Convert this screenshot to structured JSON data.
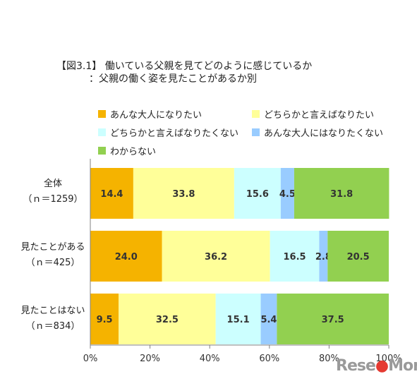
{
  "chart_data": {
    "type": "bar",
    "orientation": "horizontal",
    "stacked": true,
    "title": "【図3.1】 働いている父親を見てどのように感じているか",
    "subtitle": "：父親の働く姿を見たことがあるか別",
    "categories": [
      {
        "name": "全体",
        "n": "（ｎ＝1259）"
      },
      {
        "name": "見たことがある",
        "n": "（ｎ＝425）"
      },
      {
        "name": "見たことはない",
        "n": "（ｎ＝834）"
      }
    ],
    "series": [
      {
        "name": "あんな大人になりたい",
        "color": "#f5b300",
        "values": [
          14.4,
          24.0,
          9.5
        ],
        "labels": [
          "14.4",
          "24.0",
          "9.5"
        ]
      },
      {
        "name": "どちらかと言えばなりたい",
        "color": "#ffff99",
        "values": [
          33.8,
          36.2,
          32.5
        ],
        "labels": [
          "33.8",
          "36.2",
          "32.5"
        ]
      },
      {
        "name": "どちらかと言えばなりたくない",
        "color": "#ccffff",
        "values": [
          15.6,
          16.5,
          15.1
        ],
        "labels": [
          "15.6",
          "16.5",
          "15.1"
        ]
      },
      {
        "name": "あんな大人にはなりたくない",
        "color": "#99ccff",
        "values": [
          4.5,
          2.8,
          5.4
        ],
        "labels": [
          "4.5",
          "2.8",
          "5.4"
        ]
      },
      {
        "name": "わからない",
        "color": "#92d050",
        "values": [
          31.8,
          20.5,
          37.5
        ],
        "labels": [
          "31.8",
          "20.5",
          "37.5"
        ]
      }
    ],
    "xlim": [
      0,
      100
    ],
    "xticks": [
      "0%",
      "20%",
      "40%",
      "60%",
      "80%",
      "100%"
    ],
    "grid": false,
    "legend_position": "top"
  },
  "watermark": {
    "pre": "Rese",
    "mid": "●",
    "post": "Mom"
  }
}
